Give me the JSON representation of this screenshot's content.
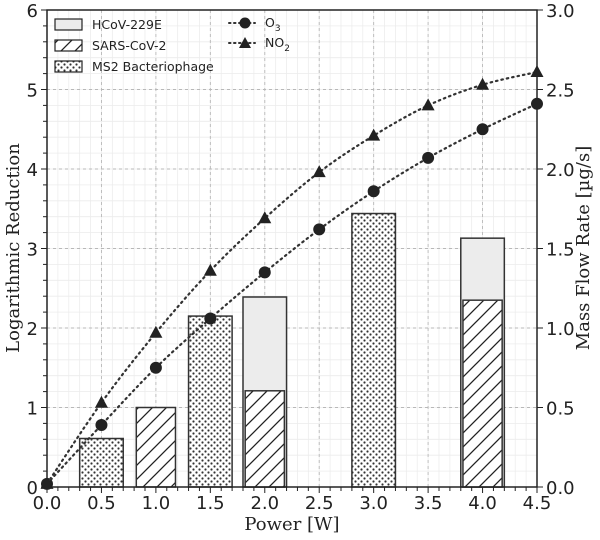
{
  "chart_data": {
    "type": "bar",
    "title": "",
    "xlabel": "Power [W]",
    "ylabel": "Logarithmic Reduction",
    "y2label": "Mass Flow Rate [µg/s]",
    "xlim": [
      0.0,
      4.5
    ],
    "ylim": [
      0,
      6
    ],
    "y2lim": [
      0.0,
      3.0
    ],
    "xticks": [
      "0.0",
      "0.5",
      "1.0",
      "1.5",
      "2.0",
      "2.5",
      "3.0",
      "3.5",
      "4.0",
      "4.5"
    ],
    "yticks": [
      "0",
      "1",
      "2",
      "3",
      "4",
      "5",
      "6"
    ],
    "y2ticks": [
      "0.0",
      "0.5",
      "1.0",
      "1.5",
      "2.0",
      "2.5",
      "3.0"
    ],
    "grid": true,
    "legend_position": "top-left",
    "bar_width": 0.4,
    "bar_series": [
      {
        "name": "HCoV-229E",
        "pattern": "solid-light",
        "color": "#ececec",
        "points": [
          {
            "x": 2.0,
            "y": 2.39
          },
          {
            "x": 4.0,
            "y": 3.13
          }
        ]
      },
      {
        "name": "SARS-CoV-2",
        "pattern": "hatch",
        "color": "#ffffff",
        "points": [
          {
            "x": 1.0,
            "y": 1.0
          },
          {
            "x": 2.0,
            "y": 1.21
          },
          {
            "x": 4.0,
            "y": 2.35
          }
        ]
      },
      {
        "name": "MS2 Bacteriophage",
        "pattern": "dots",
        "color": "#ffffff",
        "points": [
          {
            "x": 0.5,
            "y": 0.61
          },
          {
            "x": 1.5,
            "y": 2.15
          },
          {
            "x": 3.0,
            "y": 3.44
          }
        ]
      }
    ],
    "line_series": [
      {
        "name": "O3",
        "label_main": "O",
        "label_sub": "3",
        "marker": "circle",
        "axis": "right",
        "x": [
          0.0,
          0.5,
          1.0,
          1.5,
          2.0,
          2.5,
          3.0,
          3.5,
          4.0,
          4.5
        ],
        "y": [
          0.02,
          0.39,
          0.75,
          1.06,
          1.35,
          1.62,
          1.86,
          2.07,
          2.25,
          2.41
        ]
      },
      {
        "name": "NO2",
        "label_main": "NO",
        "label_sub": "2",
        "marker": "triangle",
        "axis": "right",
        "x": [
          0.0,
          0.5,
          1.0,
          1.5,
          2.0,
          2.5,
          3.0,
          3.5,
          4.0,
          4.5
        ],
        "y": [
          0.02,
          0.53,
          0.97,
          1.36,
          1.69,
          1.98,
          2.21,
          2.4,
          2.53,
          2.61
        ]
      }
    ]
  }
}
